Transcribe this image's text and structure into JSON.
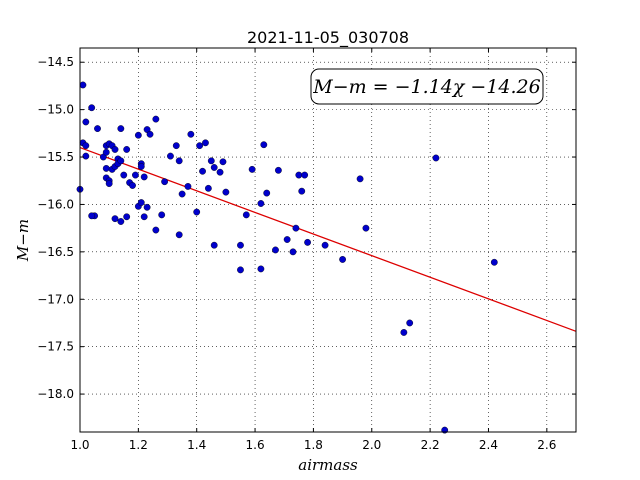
{
  "chart_data": {
    "type": "scatter",
    "title": "2021-11-05_030708",
    "xlabel": "airmass",
    "ylabel": "M−m",
    "xlim": [
      1.0,
      2.7
    ],
    "ylim": [
      -18.4,
      -14.35
    ],
    "xticks": [
      1.0,
      1.2,
      1.4,
      1.6,
      1.8,
      2.0,
      2.2,
      2.4,
      2.6
    ],
    "xtick_labels": [
      "1.0",
      "1.2",
      "1.4",
      "1.6",
      "1.8",
      "2.0",
      "2.2",
      "2.4",
      "2.6"
    ],
    "yticks": [
      -14.5,
      -15.0,
      -15.5,
      -16.0,
      -16.5,
      -17.0,
      -17.5,
      -18.0
    ],
    "ytick_labels": [
      "−14.5",
      "−15.0",
      "−15.5",
      "−16.0",
      "−16.5",
      "−17.0",
      "−17.5",
      "−18.0"
    ],
    "grid": true,
    "annotation": "M−m = −1.14χ −14.26",
    "point_color": "#0000cc",
    "fit_color": "#dd0000",
    "fit": {
      "slope": -1.14,
      "intercept": -14.26
    },
    "points": [
      {
        "x": 1.0,
        "y": -15.84
      },
      {
        "x": 1.01,
        "y": -15.35
      },
      {
        "x": 1.02,
        "y": -15.38
      },
      {
        "x": 1.01,
        "y": -14.74
      },
      {
        "x": 1.02,
        "y": -15.13
      },
      {
        "x": 1.02,
        "y": -15.49
      },
      {
        "x": 1.04,
        "y": -14.98
      },
      {
        "x": 1.05,
        "y": -16.12
      },
      {
        "x": 1.04,
        "y": -16.12
      },
      {
        "x": 1.06,
        "y": -15.2
      },
      {
        "x": 1.08,
        "y": -15.5
      },
      {
        "x": 1.09,
        "y": -15.38
      },
      {
        "x": 1.09,
        "y": -15.45
      },
      {
        "x": 1.09,
        "y": -15.62
      },
      {
        "x": 1.09,
        "y": -15.72
      },
      {
        "x": 1.1,
        "y": -15.36
      },
      {
        "x": 1.1,
        "y": -15.75
      },
      {
        "x": 1.1,
        "y": -15.78
      },
      {
        "x": 1.11,
        "y": -15.63
      },
      {
        "x": 1.11,
        "y": -15.38
      },
      {
        "x": 1.12,
        "y": -15.6
      },
      {
        "x": 1.12,
        "y": -15.42
      },
      {
        "x": 1.12,
        "y": -16.15
      },
      {
        "x": 1.13,
        "y": -15.52
      },
      {
        "x": 1.13,
        "y": -15.57
      },
      {
        "x": 1.14,
        "y": -15.54
      },
      {
        "x": 1.14,
        "y": -16.18
      },
      {
        "x": 1.14,
        "y": -15.2
      },
      {
        "x": 1.15,
        "y": -15.69
      },
      {
        "x": 1.16,
        "y": -15.42
      },
      {
        "x": 1.16,
        "y": -16.13
      },
      {
        "x": 1.17,
        "y": -15.77
      },
      {
        "x": 1.18,
        "y": -15.8
      },
      {
        "x": 1.19,
        "y": -15.69
      },
      {
        "x": 1.2,
        "y": -16.02
      },
      {
        "x": 1.2,
        "y": -15.27
      },
      {
        "x": 1.21,
        "y": -15.57
      },
      {
        "x": 1.21,
        "y": -15.6
      },
      {
        "x": 1.21,
        "y": -15.98
      },
      {
        "x": 1.22,
        "y": -15.71
      },
      {
        "x": 1.22,
        "y": -16.13
      },
      {
        "x": 1.23,
        "y": -16.03
      },
      {
        "x": 1.23,
        "y": -15.21
      },
      {
        "x": 1.24,
        "y": -15.26
      },
      {
        "x": 1.26,
        "y": -16.27
      },
      {
        "x": 1.26,
        "y": -15.1
      },
      {
        "x": 1.28,
        "y": -16.11
      },
      {
        "x": 1.29,
        "y": -15.76
      },
      {
        "x": 1.31,
        "y": -15.49
      },
      {
        "x": 1.33,
        "y": -15.38
      },
      {
        "x": 1.34,
        "y": -15.54
      },
      {
        "x": 1.34,
        "y": -16.32
      },
      {
        "x": 1.35,
        "y": -15.89
      },
      {
        "x": 1.37,
        "y": -15.81
      },
      {
        "x": 1.38,
        "y": -15.26
      },
      {
        "x": 1.4,
        "y": -16.08
      },
      {
        "x": 1.41,
        "y": -15.38
      },
      {
        "x": 1.42,
        "y": -15.65
      },
      {
        "x": 1.43,
        "y": -15.35
      },
      {
        "x": 1.44,
        "y": -15.83
      },
      {
        "x": 1.45,
        "y": -15.54
      },
      {
        "x": 1.46,
        "y": -16.43
      },
      {
        "x": 1.46,
        "y": -15.61
      },
      {
        "x": 1.48,
        "y": -15.66
      },
      {
        "x": 1.49,
        "y": -15.55
      },
      {
        "x": 1.5,
        "y": -15.87
      },
      {
        "x": 1.55,
        "y": -16.43
      },
      {
        "x": 1.55,
        "y": -16.69
      },
      {
        "x": 1.57,
        "y": -16.11
      },
      {
        "x": 1.59,
        "y": -15.63
      },
      {
        "x": 1.62,
        "y": -16.68
      },
      {
        "x": 1.62,
        "y": -15.99
      },
      {
        "x": 1.63,
        "y": -15.37
      },
      {
        "x": 1.64,
        "y": -15.88
      },
      {
        "x": 1.67,
        "y": -16.48
      },
      {
        "x": 1.68,
        "y": -15.64
      },
      {
        "x": 1.71,
        "y": -16.37
      },
      {
        "x": 1.73,
        "y": -16.5
      },
      {
        "x": 1.74,
        "y": -16.25
      },
      {
        "x": 1.75,
        "y": -15.69
      },
      {
        "x": 1.76,
        "y": -15.86
      },
      {
        "x": 1.77,
        "y": -15.69
      },
      {
        "x": 1.78,
        "y": -16.4
      },
      {
        "x": 1.84,
        "y": -16.43
      },
      {
        "x": 1.9,
        "y": -16.58
      },
      {
        "x": 1.96,
        "y": -15.73
      },
      {
        "x": 1.98,
        "y": -16.25
      },
      {
        "x": 2.11,
        "y": -17.35
      },
      {
        "x": 2.13,
        "y": -17.25
      },
      {
        "x": 2.22,
        "y": -15.51
      },
      {
        "x": 2.25,
        "y": -18.38
      },
      {
        "x": 2.42,
        "y": -16.61
      }
    ]
  }
}
